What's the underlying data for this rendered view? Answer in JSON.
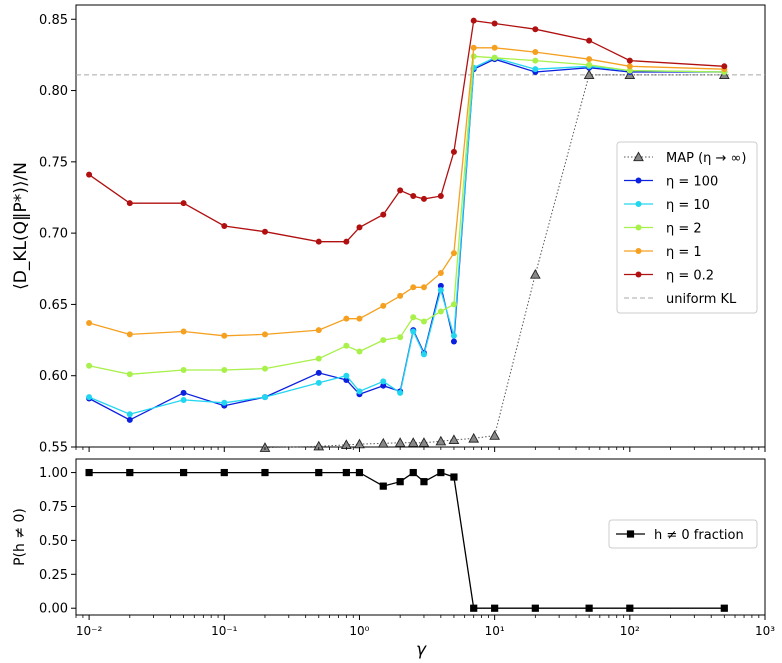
{
  "chart_data": [
    {
      "type": "line",
      "xscale": "log",
      "xlim": [
        0.008,
        1000
      ],
      "ylim": [
        0.55,
        0.86
      ],
      "xlabel": "",
      "ylabel": "⟨D_KL(Q‖P*)⟩/N",
      "grid": false,
      "legend_position": "right",
      "x_tick_labels": [
        "10⁻²",
        "10⁻¹",
        "10⁰",
        "10¹",
        "10²",
        "10³"
      ],
      "y_ticks": [
        "0.55",
        "0.60",
        "0.65",
        "0.70",
        "0.75",
        "0.80",
        "0.85"
      ],
      "reference_line": {
        "name": "uniform KL",
        "y": 0.811,
        "color": "#a8a8a8"
      },
      "series": [
        {
          "name": "MAP (η → ∞)",
          "color": "#333333",
          "marker": "triangle",
          "x": [
            0.2,
            0.5,
            0.8,
            1,
            1.5,
            2,
            2.5,
            3,
            4,
            5,
            7,
            10,
            20,
            50,
            100,
            500
          ],
          "y": [
            0.5495,
            0.5505,
            0.5515,
            0.552,
            0.5525,
            0.553,
            0.553,
            0.553,
            0.554,
            0.555,
            0.556,
            0.558,
            0.671,
            0.811,
            0.811,
            0.811
          ]
        },
        {
          "name": "η = 100",
          "color": "#0c20e0",
          "marker": "circle",
          "x": [
            0.01,
            0.02,
            0.05,
            0.1,
            0.2,
            0.5,
            0.8,
            1,
            1.5,
            2,
            2.5,
            3,
            4,
            5,
            7,
            10,
            20,
            50,
            100,
            500
          ],
          "y": [
            0.584,
            0.569,
            0.588,
            0.579,
            0.585,
            0.602,
            0.597,
            0.587,
            0.593,
            0.589,
            0.632,
            0.616,
            0.663,
            0.624,
            0.815,
            0.822,
            0.813,
            0.816,
            0.813,
            0.813
          ]
        },
        {
          "name": "η = 10",
          "color": "#22d6f0",
          "marker": "circle",
          "x": [
            0.01,
            0.02,
            0.05,
            0.1,
            0.2,
            0.5,
            0.8,
            1,
            1.5,
            2,
            2.5,
            3,
            4,
            5,
            7,
            10,
            20,
            50,
            100,
            500
          ],
          "y": [
            0.585,
            0.573,
            0.583,
            0.581,
            0.585,
            0.595,
            0.6,
            0.589,
            0.596,
            0.588,
            0.631,
            0.615,
            0.66,
            0.628,
            0.816,
            0.823,
            0.815,
            0.817,
            0.814,
            0.813
          ]
        },
        {
          "name": "η = 2",
          "color": "#a8f04a",
          "marker": "circle",
          "x": [
            0.01,
            0.02,
            0.05,
            0.1,
            0.2,
            0.5,
            0.8,
            1,
            1.5,
            2,
            2.5,
            3,
            4,
            5,
            7,
            10,
            20,
            50,
            100,
            500
          ],
          "y": [
            0.607,
            0.601,
            0.604,
            0.604,
            0.605,
            0.612,
            0.621,
            0.617,
            0.625,
            0.627,
            0.641,
            0.638,
            0.645,
            0.65,
            0.824,
            0.823,
            0.821,
            0.818,
            0.814,
            0.813
          ]
        },
        {
          "name": "η = 1",
          "color": "#f5a020",
          "marker": "circle",
          "x": [
            0.01,
            0.02,
            0.05,
            0.1,
            0.2,
            0.5,
            0.8,
            1,
            1.5,
            2,
            2.5,
            3,
            4,
            5,
            7,
            10,
            20,
            50,
            100,
            500
          ],
          "y": [
            0.637,
            0.629,
            0.631,
            0.628,
            0.629,
            0.632,
            0.64,
            0.64,
            0.649,
            0.656,
            0.662,
            0.662,
            0.672,
            0.686,
            0.83,
            0.83,
            0.827,
            0.822,
            0.817,
            0.815
          ]
        },
        {
          "name": "η = 0.2",
          "color": "#b01010",
          "marker": "circle",
          "x": [
            0.01,
            0.02,
            0.05,
            0.1,
            0.2,
            0.5,
            0.8,
            1,
            1.5,
            2,
            2.5,
            3,
            4,
            5,
            7,
            10,
            20,
            50,
            100,
            500
          ],
          "y": [
            0.741,
            0.721,
            0.721,
            0.705,
            0.701,
            0.694,
            0.694,
            0.704,
            0.713,
            0.73,
            0.726,
            0.724,
            0.726,
            0.757,
            0.849,
            0.847,
            0.843,
            0.835,
            0.821,
            0.817
          ]
        }
      ]
    },
    {
      "type": "line",
      "xscale": "log",
      "xlim": [
        0.008,
        1000
      ],
      "ylim": [
        -0.05,
        1.1
      ],
      "xlabel": "γ",
      "ylabel": "P(h ≠ 0)",
      "grid": false,
      "legend_position": "right",
      "x_tick_labels": [
        "10⁻²",
        "10⁻¹",
        "10⁰",
        "10¹",
        "10²",
        "10³"
      ],
      "y_ticks": [
        "0.00",
        "0.25",
        "0.50",
        "0.75",
        "1.00"
      ],
      "series": [
        {
          "name": "h ≠ 0 fraction",
          "color": "#000000",
          "marker": "square",
          "x": [
            0.01,
            0.02,
            0.05,
            0.1,
            0.2,
            0.5,
            0.8,
            1,
            1.5,
            2,
            2.5,
            3,
            4,
            5,
            7,
            10,
            20,
            50,
            100,
            500
          ],
          "y": [
            1.0,
            1.0,
            1.0,
            1.0,
            1.0,
            1.0,
            1.0,
            1.0,
            0.9,
            0.933,
            1.0,
            0.933,
            1.0,
            0.967,
            0.0,
            0.0,
            0.0,
            0.0,
            0.0,
            0.0
          ]
        }
      ]
    }
  ]
}
